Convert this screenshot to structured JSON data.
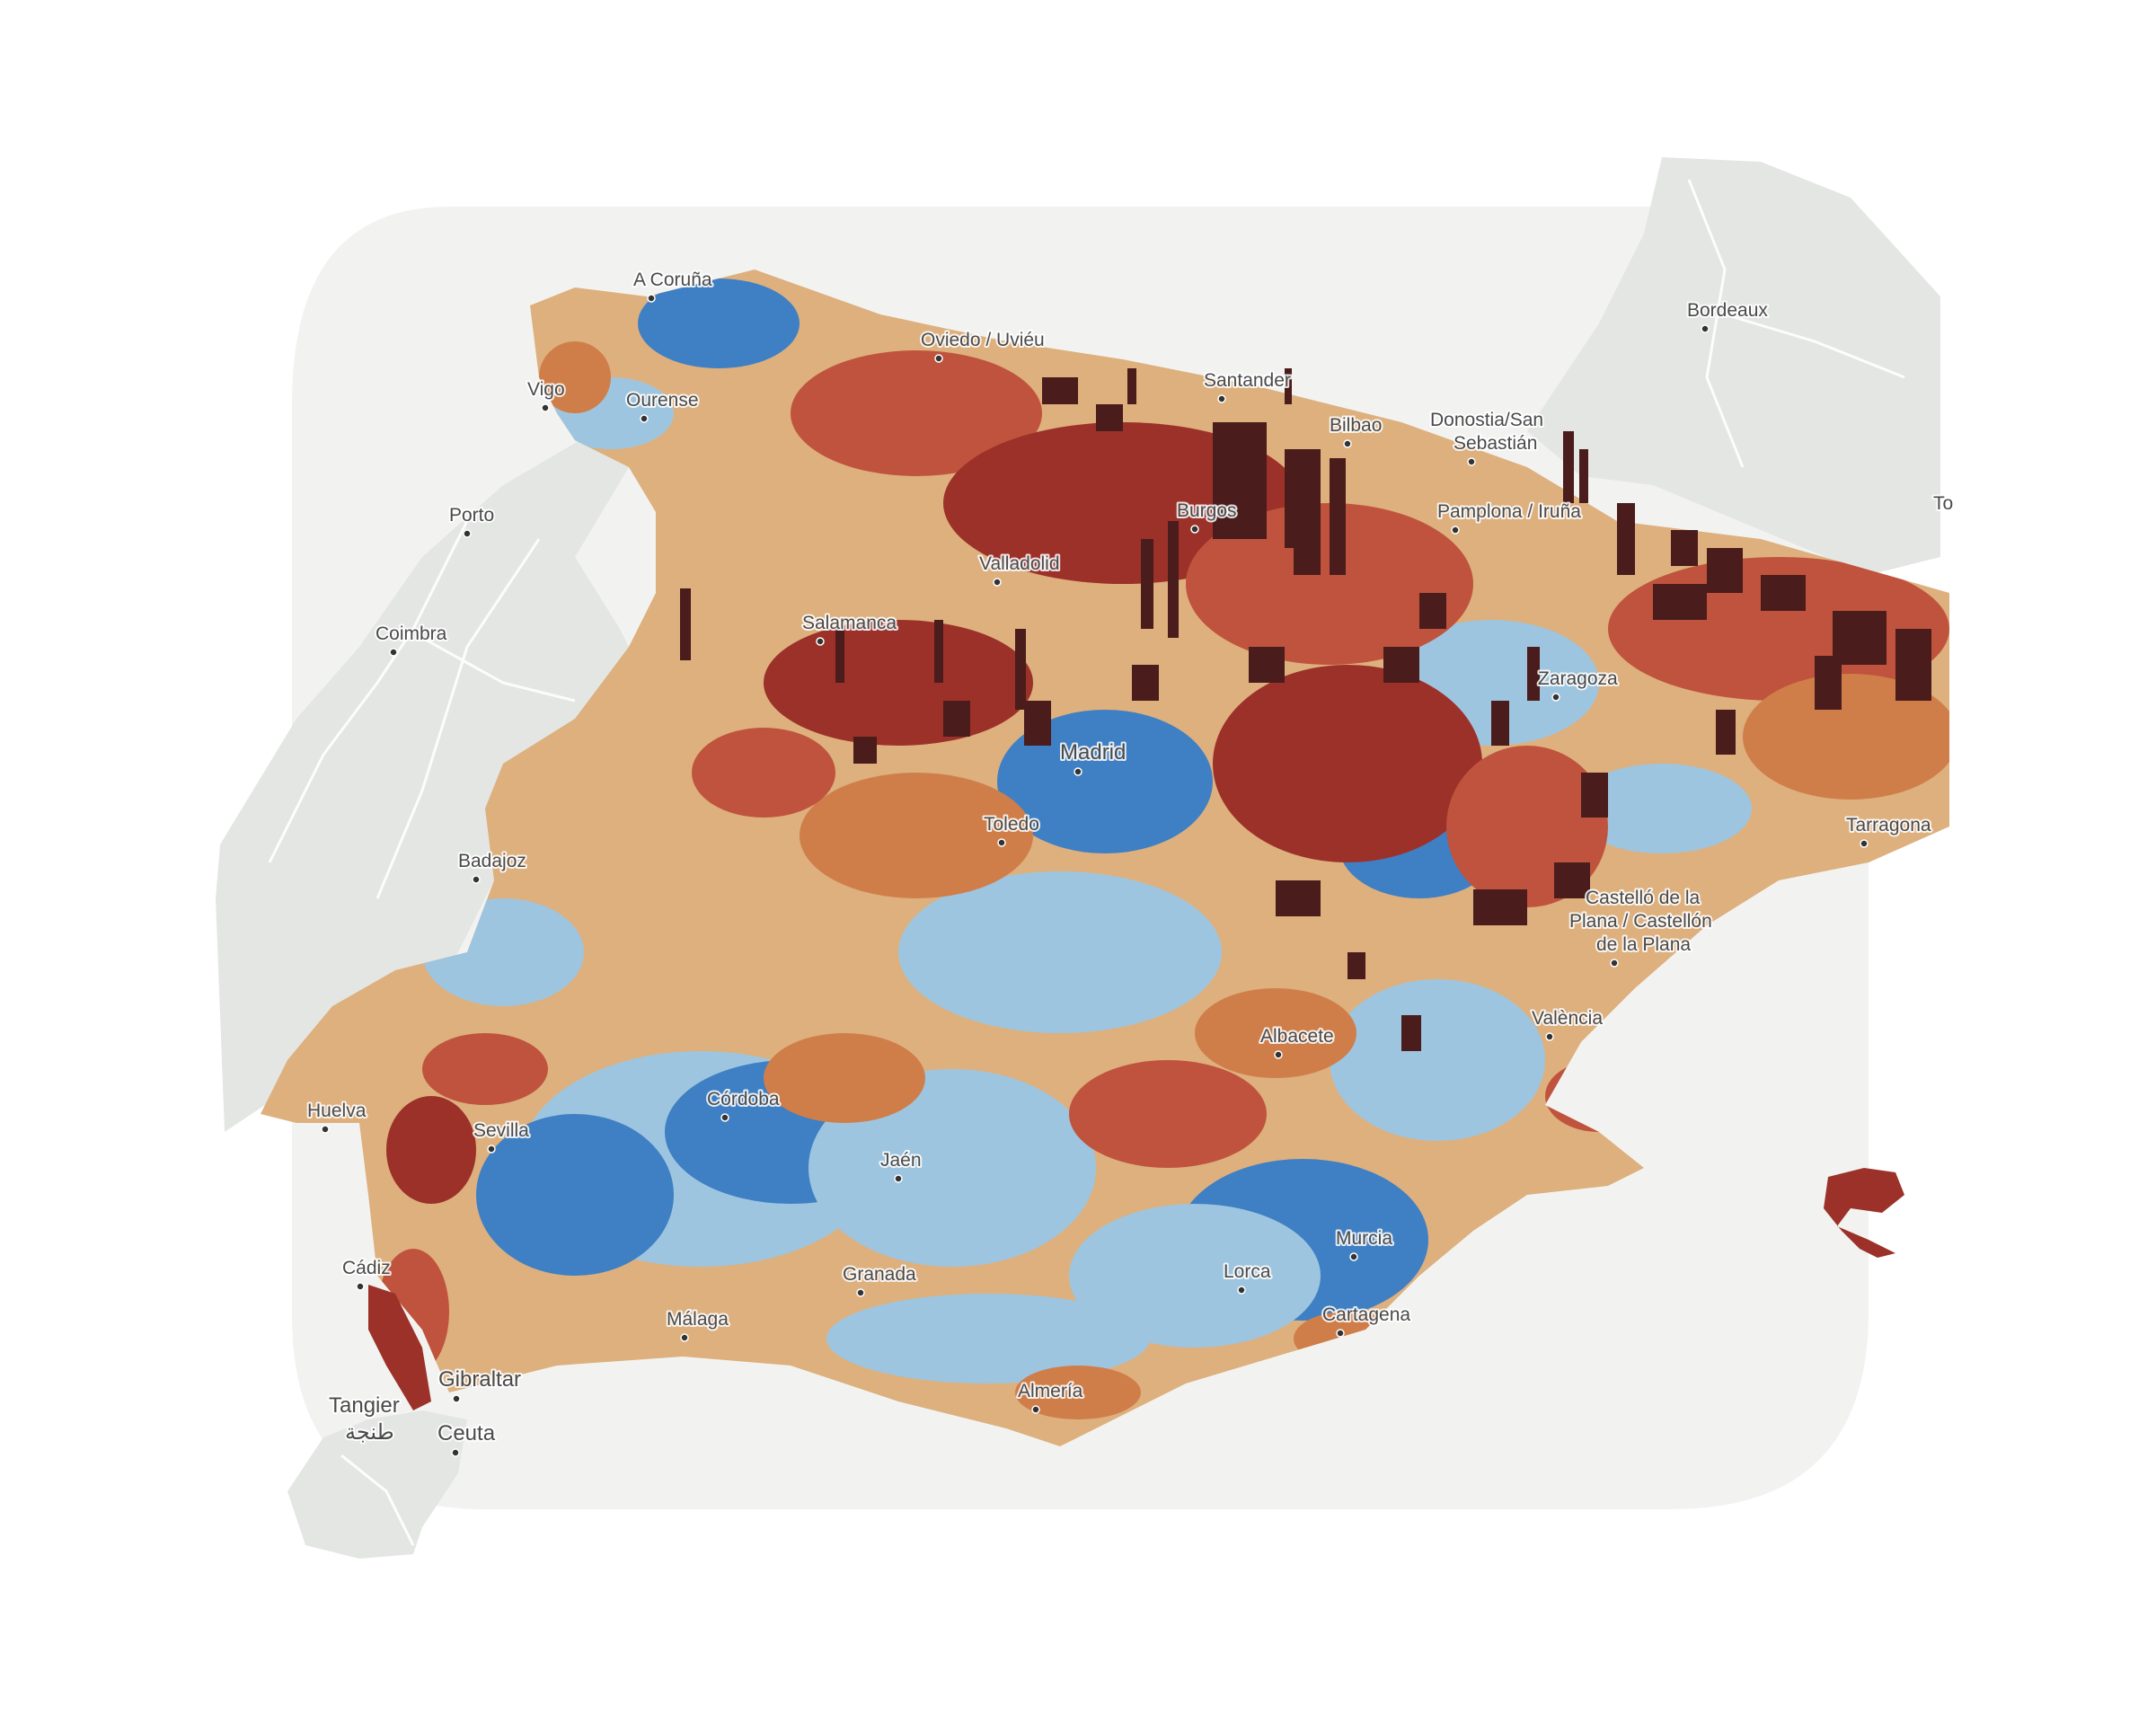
{
  "map": {
    "type": "3D extruded choropleth of municipalities",
    "region": "Iberian Peninsula",
    "basemap_colors": {
      "sea": "#f2f3f1",
      "foreign_land": "#e4e6e4",
      "roads": "#ffffff"
    },
    "color_scale": [
      "#3f7fc4",
      "#9ec5df",
      "#ddb07e",
      "#d07e49",
      "#c0533d",
      "#9c3129",
      "#4a1c1b"
    ],
    "cities": [
      {
        "name": "A Coruña"
      },
      {
        "name": "Oviedo / Uviéu"
      },
      {
        "name": "Santander"
      },
      {
        "name": "Bordeaux"
      },
      {
        "name": "Vigo"
      },
      {
        "name": "Ourense"
      },
      {
        "name": "Bilbao"
      },
      {
        "name": "Donostia/San"
      },
      {
        "name": "Sebastián"
      },
      {
        "name": "Porto"
      },
      {
        "name": "Burgos"
      },
      {
        "name": "Pamplona / Iruña"
      },
      {
        "name": "Valladolid"
      },
      {
        "name": "Coimbra"
      },
      {
        "name": "Salamanca"
      },
      {
        "name": "Zaragoza"
      },
      {
        "name": "Madrid"
      },
      {
        "name": "Toledo"
      },
      {
        "name": "Tarragona"
      },
      {
        "name": "Badajoz"
      },
      {
        "name": "Castelló de la"
      },
      {
        "name": "Plana / Castellón"
      },
      {
        "name": "de la Plana"
      },
      {
        "name": "Albacete"
      },
      {
        "name": "València"
      },
      {
        "name": "Huelva"
      },
      {
        "name": "Córdoba"
      },
      {
        "name": "Sevilla"
      },
      {
        "name": "Jaén"
      },
      {
        "name": "Murcia"
      },
      {
        "name": "Lorca"
      },
      {
        "name": "Cádiz"
      },
      {
        "name": "Granada"
      },
      {
        "name": "Málaga"
      },
      {
        "name": "Cartagena"
      },
      {
        "name": "Gibraltar"
      },
      {
        "name": "Tangier"
      },
      {
        "name": "طنجة"
      },
      {
        "name": "Almería"
      },
      {
        "name": "Ceuta"
      },
      {
        "name": "To"
      }
    ]
  }
}
